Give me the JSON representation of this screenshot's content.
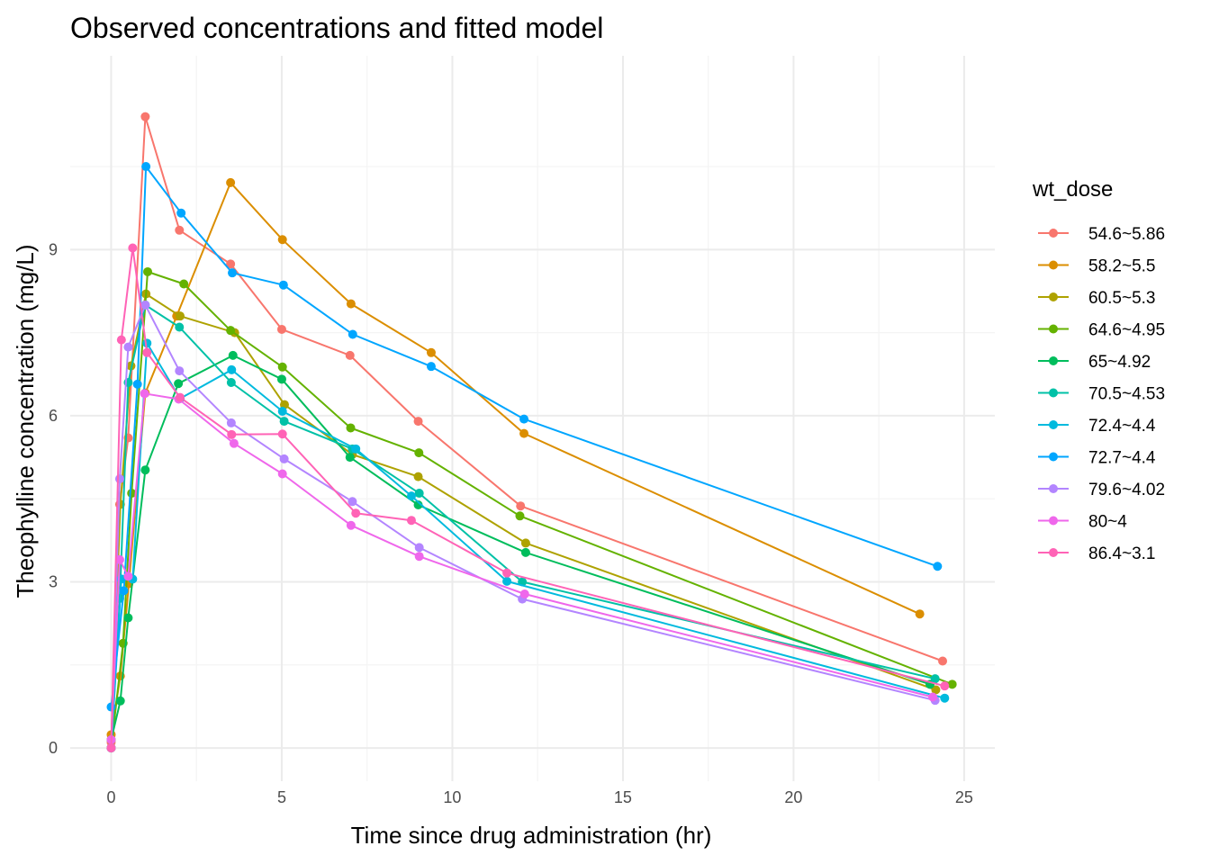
{
  "chart_data": {
    "type": "line",
    "title": "Observed concentrations and fitted model",
    "xlabel": "Time since drug administration (hr)",
    "ylabel": "Theophylline concentration (mg/L)",
    "xlim": [
      -1.2,
      25.9
    ],
    "ylim": [
      -0.6,
      12.5
    ],
    "x_ticks": [
      0,
      5,
      10,
      15,
      20,
      25
    ],
    "y_ticks": [
      0,
      3,
      6,
      9
    ],
    "grid": true,
    "legend": {
      "title": "wt_dose",
      "position": "right"
    },
    "series": [
      {
        "name": "54.6~5.86",
        "color": "#F8766D",
        "x": [
          0,
          0.25,
          0.5,
          1.0,
          2.0,
          3.5,
          5.0,
          7.0,
          9.0,
          12.0,
          24.37
        ],
        "y": [
          0.1,
          4.4,
          5.6,
          11.4,
          9.35,
          8.74,
          7.56,
          7.09,
          5.9,
          4.37,
          1.57
        ]
      },
      {
        "name": "58.2~5.5",
        "color": "#DB8E00",
        "x": [
          0,
          0.27,
          0.52,
          1.0,
          1.92,
          3.5,
          5.02,
          7.03,
          9.38,
          12.1,
          23.7
        ],
        "y": [
          0.24,
          1.3,
          2.97,
          6.41,
          7.8,
          10.21,
          9.18,
          8.02,
          7.14,
          5.68,
          2.42
        ]
      },
      {
        "name": "60.5~5.3",
        "color": "#AEA200",
        "x": [
          0,
          0.27,
          0.58,
          1.02,
          2.02,
          3.62,
          5.08,
          7.07,
          9.0,
          12.15,
          24.17
        ],
        "y": [
          0,
          4.4,
          6.9,
          8.2,
          7.8,
          7.5,
          6.2,
          5.3,
          4.9,
          3.7,
          1.05
        ]
      },
      {
        "name": "64.6~4.95",
        "color": "#64B200",
        "x": [
          0,
          0.35,
          0.6,
          1.07,
          2.13,
          3.5,
          5.02,
          7.02,
          9.02,
          11.98,
          24.65
        ],
        "y": [
          0,
          1.89,
          4.6,
          8.6,
          8.38,
          7.54,
          6.88,
          5.78,
          5.33,
          4.19,
          1.15
        ]
      },
      {
        "name": "65~4.92",
        "color": "#00BD5C",
        "x": [
          0,
          0.27,
          0.5,
          1.0,
          1.97,
          3.57,
          5.0,
          7.0,
          9.0,
          12.15,
          24.0
        ],
        "y": [
          0.15,
          0.85,
          2.35,
          5.02,
          6.58,
          7.09,
          6.66,
          5.25,
          4.39,
          3.53,
          1.15
        ]
      },
      {
        "name": "70.5~4.53",
        "color": "#00C1A7",
        "x": [
          0,
          0.25,
          0.5,
          1.0,
          2.0,
          3.52,
          5.07,
          7.07,
          9.03,
          12.05,
          24.15
        ],
        "y": [
          0,
          2.7,
          6.6,
          8.0,
          7.6,
          6.6,
          5.9,
          5.4,
          4.6,
          3.0,
          1.25
        ]
      },
      {
        "name": "72.4~4.4",
        "color": "#00BADE",
        "x": [
          0,
          0.3,
          0.63,
          1.05,
          2.02,
          3.53,
          5.02,
          7.17,
          8.8,
          11.6,
          24.43
        ],
        "y": [
          0,
          3.05,
          3.05,
          7.31,
          6.31,
          6.83,
          6.08,
          5.4,
          4.55,
          3.01,
          0.9
        ]
      },
      {
        "name": "72.7~4.4",
        "color": "#00A6FF",
        "x": [
          0,
          0.37,
          0.77,
          1.02,
          2.05,
          3.55,
          5.05,
          7.08,
          9.38,
          12.1,
          24.22
        ],
        "y": [
          0.74,
          2.84,
          6.57,
          10.5,
          9.66,
          8.58,
          8.36,
          7.47,
          6.89,
          5.94,
          3.28
        ]
      },
      {
        "name": "79.6~4.02",
        "color": "#B385FF",
        "x": [
          0,
          0.25,
          0.5,
          1.0,
          2.0,
          3.52,
          5.07,
          7.07,
          9.03,
          12.05,
          24.15
        ],
        "y": [
          0,
          4.86,
          7.24,
          8.0,
          6.81,
          5.87,
          5.22,
          4.45,
          3.62,
          2.69,
          0.86
        ]
      },
      {
        "name": "80~4",
        "color": "#EF67EB",
        "x": [
          0,
          0.25,
          0.5,
          0.98,
          1.98,
          3.6,
          5.02,
          7.03,
          9.03,
          12.12,
          24.08
        ],
        "y": [
          0.15,
          3.4,
          3.1,
          6.4,
          6.3,
          5.5,
          4.95,
          4.02,
          3.46,
          2.78,
          0.92
        ]
      },
      {
        "name": "86.4~3.1",
        "color": "#FF63B6",
        "x": [
          0,
          0.3,
          0.63,
          1.05,
          2.02,
          3.53,
          5.02,
          7.17,
          8.8,
          11.6,
          24.43
        ],
        "y": [
          0,
          7.37,
          9.03,
          7.14,
          6.33,
          5.66,
          5.67,
          4.24,
          4.11,
          3.16,
          1.12
        ]
      }
    ]
  }
}
